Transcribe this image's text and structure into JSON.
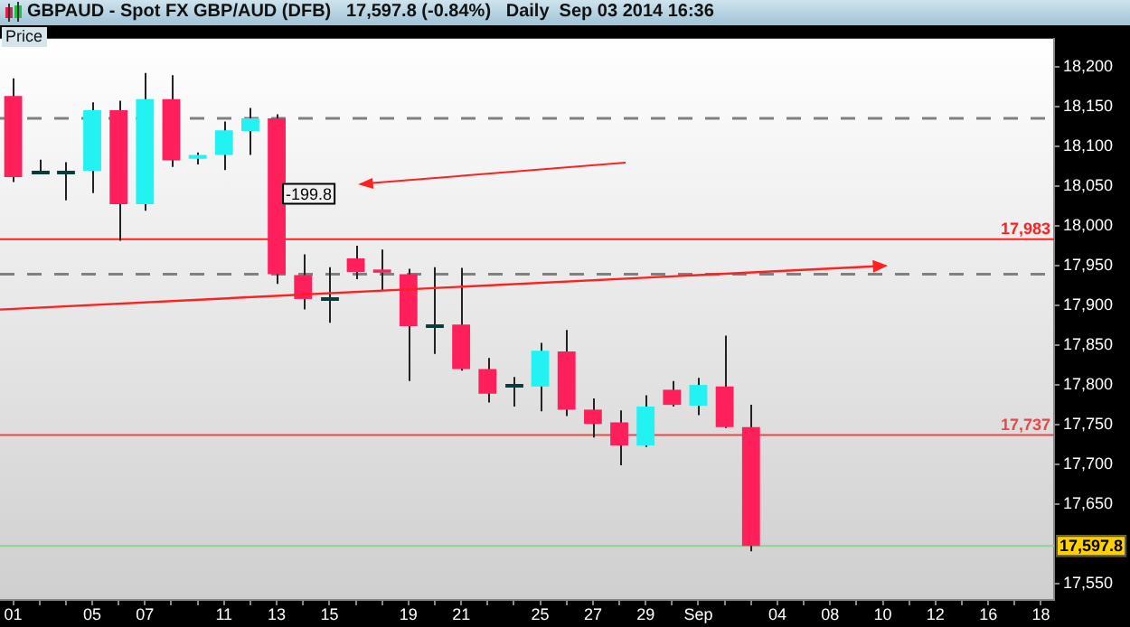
{
  "chart_data": {
    "type": "candlestick",
    "title": "GBPAUD - Spot FX GBP/AUD (DFB)   17,597.8 (-0.84%)   Daily  Sep 03 2014 16:36",
    "ylabel": "Price",
    "categories": [
      "01",
      null,
      null,
      "05",
      null,
      "07",
      null,
      null,
      "11",
      null,
      "13",
      null,
      "15",
      null,
      null,
      "19",
      null,
      "21",
      null,
      null,
      "25",
      null,
      "27",
      null,
      "29",
      null,
      "Sep",
      null,
      null,
      "04",
      null,
      "08",
      null,
      "10",
      null,
      "12",
      null,
      "16",
      null,
      "18"
    ],
    "ohlc": [
      [
        18163,
        18185,
        18055,
        18061
      ],
      [
        18069,
        18083,
        18065,
        18069
      ],
      [
        18068,
        18080,
        18032,
        18068
      ],
      [
        18069,
        18155,
        18041,
        18145
      ],
      [
        18145,
        18157,
        17981,
        18027
      ],
      [
        18027,
        18192,
        18019,
        18159
      ],
      [
        18159,
        18189,
        18074,
        18082
      ],
      [
        18084,
        18092,
        18077,
        18089
      ],
      [
        18089,
        18131,
        18070,
        18120
      ],
      [
        18119,
        18148,
        18089,
        18135
      ],
      [
        18135,
        18140,
        17927,
        17939
      ],
      [
        17938,
        17964,
        17895,
        17908
      ],
      [
        17908,
        17948,
        17878,
        17908
      ],
      [
        17959,
        17975,
        17933,
        17942
      ],
      [
        17945,
        17970,
        17918,
        17941
      ],
      [
        17939,
        17946,
        17805,
        17874
      ],
      [
        17874,
        17948,
        17839,
        17874
      ],
      [
        17876,
        17947,
        17818,
        17820
      ],
      [
        17820,
        17834,
        17778,
        17789
      ],
      [
        17800,
        17810,
        17773,
        17800
      ],
      [
        17798,
        17853,
        17767,
        17843
      ],
      [
        17842,
        17869,
        17761,
        17769
      ],
      [
        17769,
        17783,
        17734,
        17751
      ],
      [
        17753,
        17768,
        17699,
        17724
      ],
      [
        17724,
        17787,
        17722,
        17773
      ],
      [
        17794,
        17805,
        17773,
        17775
      ],
      [
        17774,
        17809,
        17762,
        17800
      ],
      [
        17798,
        17862,
        17746,
        17747
      ],
      [
        17747,
        17775,
        17591,
        17597.8
      ],
      null,
      null,
      null,
      null,
      null,
      null,
      null,
      null,
      null,
      null,
      null
    ],
    "colors": [
      "#ff1f5a",
      "#0b3b3b",
      "#0b3b3b",
      "#22f2f2",
      "#ff1f5a",
      "#22f2f2",
      "#ff1f5a",
      "#22f2f2",
      "#22f2f2",
      "#22f2f2",
      "#ff1f5a",
      "#ff1f5a",
      "#0b3b3b",
      "#ff1f5a",
      "#ff1f5a",
      "#ff1f5a",
      "#0b3b3b",
      "#ff1f5a",
      "#ff1f5a",
      "#0b3b3b",
      "#22f2f2",
      "#ff1f5a",
      "#ff1f5a",
      "#ff1f5a",
      "#22f2f2",
      "#ff1f5a",
      "#22f2f2",
      "#ff1f5a",
      "#ff1f5a",
      null,
      null,
      null,
      null,
      null,
      null,
      null,
      null,
      null,
      null,
      null
    ],
    "ylim": [
      17530,
      18235
    ],
    "yticks": [
      {
        "value": 17550,
        "label": "17,550"
      },
      {
        "value": 17650,
        "label": "17,650"
      },
      {
        "value": 17700,
        "label": "17,700"
      },
      {
        "value": 17750,
        "label": "17,750"
      },
      {
        "value": 17800,
        "label": "17,800"
      },
      {
        "value": 17850,
        "label": "17,850"
      },
      {
        "value": 17900,
        "label": "17,900"
      },
      {
        "value": 17950,
        "label": "17,950"
      },
      {
        "value": 18000,
        "label": "18,000"
      },
      {
        "value": 18050,
        "label": "18,050"
      },
      {
        "value": 18100,
        "label": "18,100"
      },
      {
        "value": 18150,
        "label": "18,150"
      },
      {
        "value": 18200,
        "label": "18,200"
      }
    ],
    "ref_lines": [
      {
        "axis": "y",
        "value": 18135,
        "label": null,
        "color": "#808080",
        "line_style": "dashed"
      },
      {
        "axis": "y",
        "value": 17939,
        "label": null,
        "color": "#808080",
        "line_style": "dashed"
      },
      {
        "axis": "y",
        "value": 17983,
        "label": "17,983",
        "color": "#ff2020",
        "line_style": "solid"
      },
      {
        "axis": "y",
        "value": 17737,
        "label": "17,737",
        "color": "#e84848",
        "line_style": "solid"
      },
      {
        "axis": "y",
        "value": 17597.8,
        "label": "17,597.8",
        "color": "#90d090",
        "line_style": "solid"
      }
    ],
    "annotations": [
      {
        "text": "-199.8",
        "x": "13",
        "y": 18040
      }
    ],
    "grid": false,
    "legend": false
  }
}
